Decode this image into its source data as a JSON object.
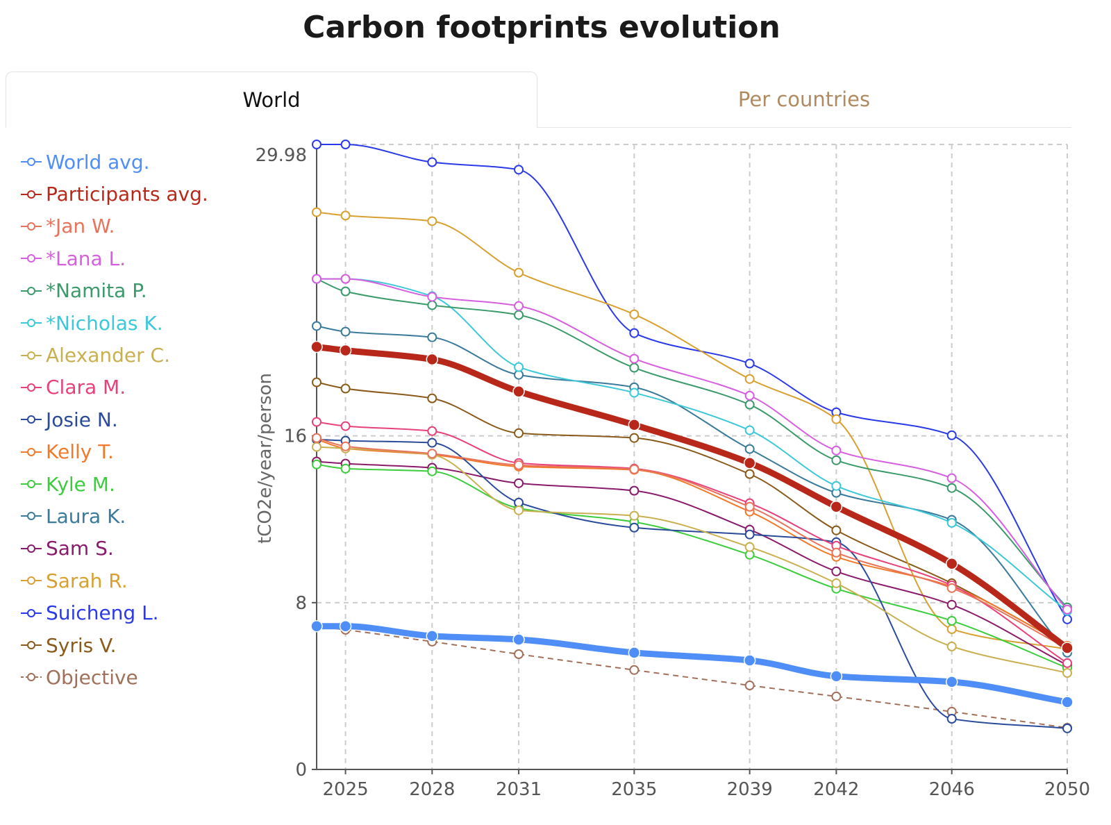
{
  "title": "Carbon footprints evolution",
  "tabs": [
    {
      "label": "World",
      "active": true
    },
    {
      "label": "Per countries",
      "active": false
    }
  ],
  "chart_data": {
    "type": "line",
    "title": "Carbon footprints evolution",
    "xlabel": "",
    "ylabel": "tCO2e/year/person",
    "x": [
      2024,
      2025,
      2028,
      2031,
      2035,
      2039,
      2042,
      2046,
      2050
    ],
    "xlim": [
      2024,
      2050
    ],
    "ylim": [
      0,
      29.98
    ],
    "x_ticks": [
      "2025",
      "2028",
      "2031",
      "2035",
      "2039",
      "2042",
      "2046",
      "2050"
    ],
    "x_tick_values": [
      2025,
      2028,
      2031,
      2035,
      2039,
      2042,
      2046,
      2050
    ],
    "y_ticks": [
      "0",
      "8",
      "16",
      "29.98"
    ],
    "y_tick_values": [
      0,
      8,
      16,
      29.98
    ],
    "grid": true,
    "legend_position": "left",
    "series": [
      {
        "name": "World avg.",
        "color": "#4f8ef7",
        "thick": true,
        "values": [
          6.87,
          6.87,
          6.4,
          6.23,
          5.6,
          5.23,
          4.47,
          4.2,
          3.23
        ]
      },
      {
        "name": "Participants avg.",
        "color": "#b8281a",
        "thick": true,
        "values": [
          20.27,
          20.1,
          19.67,
          18.13,
          16.53,
          14.7,
          12.6,
          9.87,
          5.83
        ]
      },
      {
        "name": "*Jan W.",
        "color": "#e8735a",
        "values": [
          15.9,
          15.5,
          15.15,
          14.6,
          14.4,
          12.6,
          10.4,
          8.7,
          5.8
        ]
      },
      {
        "name": "*Lana L.",
        "color": "#d65fe0",
        "values": [
          23.53,
          23.53,
          22.67,
          22.23,
          19.7,
          17.93,
          15.3,
          13.97,
          7.67
        ]
      },
      {
        "name": "*Namita P.",
        "color": "#3a9a6a",
        "values": [
          23.53,
          22.93,
          22.27,
          21.8,
          19.27,
          17.5,
          14.83,
          13.5,
          7.77
        ]
      },
      {
        "name": "*Nicholas K.",
        "color": "#3cc8d8",
        "values": [
          23.53,
          23.53,
          22.7,
          19.3,
          18.07,
          16.27,
          13.6,
          11.83,
          7.6
        ]
      },
      {
        "name": "Alexander C.",
        "color": "#c8b050",
        "values": [
          15.47,
          15.4,
          15.1,
          12.43,
          12.17,
          10.67,
          8.93,
          5.9,
          4.63
        ]
      },
      {
        "name": "Clara M.",
        "color": "#e8407a",
        "values": [
          16.67,
          16.47,
          16.23,
          14.7,
          14.43,
          12.77,
          10.73,
          8.83,
          5.1
        ]
      },
      {
        "name": "Josie N.",
        "color": "#2a4a9a",
        "values": [
          15.83,
          15.77,
          15.67,
          12.8,
          11.6,
          11.27,
          10.9,
          2.43,
          1.97
        ]
      },
      {
        "name": "Kelly T.",
        "color": "#f07a2a",
        "values": [
          15.83,
          15.4,
          15.1,
          14.53,
          14.37,
          12.37,
          10.2,
          8.77,
          5.93
        ]
      },
      {
        "name": "Kyle M.",
        "color": "#3ccc3c",
        "values": [
          14.63,
          14.43,
          14.3,
          12.53,
          11.87,
          10.3,
          8.67,
          7.13,
          4.87
        ]
      },
      {
        "name": "Laura K.",
        "color": "#3a7a9a",
        "values": [
          21.27,
          21.0,
          20.73,
          18.93,
          18.33,
          15.37,
          13.27,
          11.97,
          5.6
        ]
      },
      {
        "name": "Sam S.",
        "color": "#8a1a6a",
        "values": [
          14.77,
          14.67,
          14.47,
          13.73,
          13.37,
          11.5,
          9.5,
          7.9,
          5.0
        ]
      },
      {
        "name": "Sarah R.",
        "color": "#d8a030",
        "values": [
          26.73,
          26.57,
          26.3,
          23.83,
          21.83,
          18.73,
          16.8,
          6.73,
          5.77
        ]
      },
      {
        "name": "Suicheng L.",
        "color": "#2a3ae8",
        "values": [
          29.98,
          29.98,
          29.13,
          28.77,
          20.93,
          19.47,
          17.13,
          16.03,
          7.2
        ]
      },
      {
        "name": "Syris V.",
        "color": "#8a5a1a",
        "values": [
          18.57,
          18.27,
          17.8,
          16.13,
          15.9,
          14.17,
          11.47,
          8.93,
          5.93
        ]
      },
      {
        "name": "Objective",
        "color": "#a0705a",
        "dashed": true,
        "values": [
          6.87,
          6.7,
          6.13,
          5.53,
          4.77,
          4.03,
          3.5,
          2.77,
          2.0
        ]
      }
    ]
  }
}
